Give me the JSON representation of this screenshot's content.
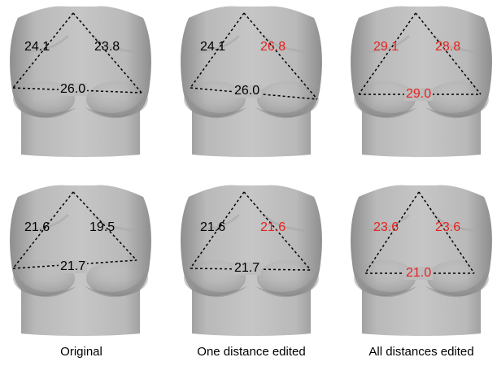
{
  "colors": {
    "unchanged": "#000000",
    "edited": "#e8211e",
    "surface": "#b7b7b7"
  },
  "columns": [
    {
      "caption": "Original"
    },
    {
      "caption": "One distance edited"
    },
    {
      "caption": "All distances edited"
    }
  ],
  "rows": [
    {
      "panels": [
        {
          "left": "24.1",
          "right": "23.8",
          "bottom": "26.0",
          "left_edited": false,
          "right_edited": false,
          "bottom_edited": false
        },
        {
          "left": "24.1",
          "right": "26.8",
          "bottom": "26.0",
          "left_edited": false,
          "right_edited": true,
          "bottom_edited": false
        },
        {
          "left": "29.1",
          "right": "28.8",
          "bottom": "29.0",
          "left_edited": true,
          "right_edited": true,
          "bottom_edited": true
        }
      ]
    },
    {
      "panels": [
        {
          "left": "21.6",
          "right": "19.5",
          "bottom": "21.7",
          "left_edited": false,
          "right_edited": false,
          "bottom_edited": false
        },
        {
          "left": "21.6",
          "right": "21.6",
          "bottom": "21.7",
          "left_edited": false,
          "right_edited": true,
          "bottom_edited": false
        },
        {
          "left": "23.6",
          "right": "23.6",
          "bottom": "21.0",
          "left_edited": true,
          "right_edited": true,
          "bottom_edited": true
        }
      ]
    }
  ]
}
